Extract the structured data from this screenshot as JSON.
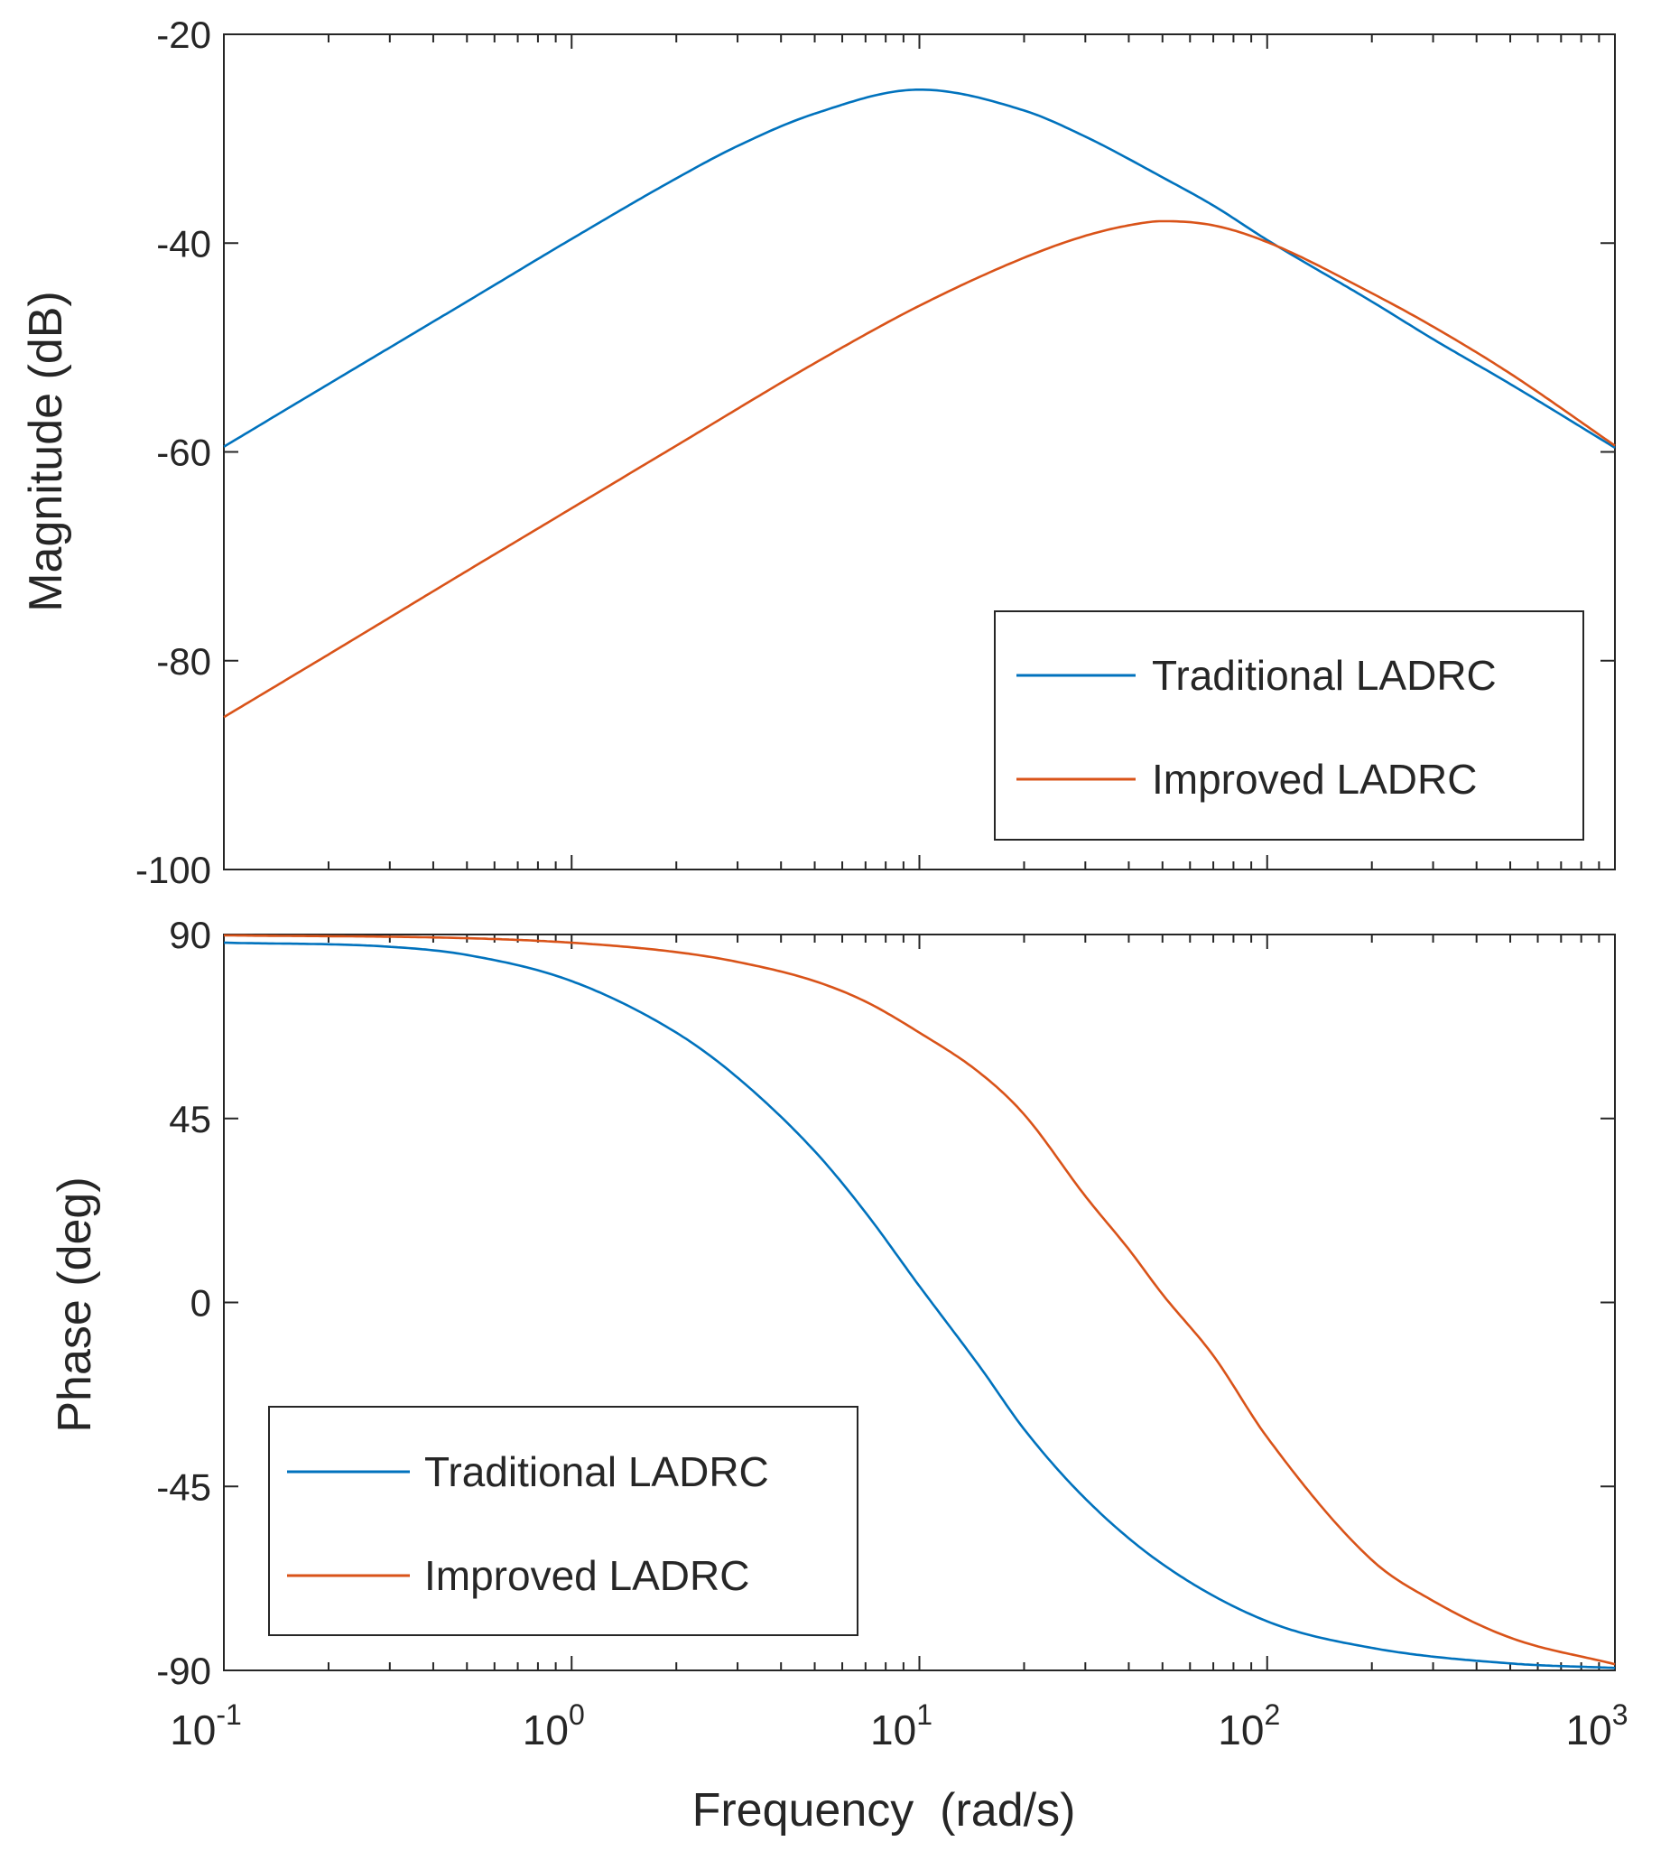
{
  "chart_data": [
    {
      "type": "line",
      "panel": "magnitude",
      "xscale": "log",
      "xlim": [
        0.1,
        1000
      ],
      "ylim": [
        -100,
        -20
      ],
      "yticks": [
        -20,
        -40,
        -60,
        -80,
        -100
      ],
      "xlabel": "",
      "ylabel": "Magnitude (dB)",
      "legend": {
        "placement": "lower-right"
      },
      "series": [
        {
          "name": "Traditional LADRC",
          "color": "#0072BD",
          "x": [
            0.1,
            0.2,
            0.5,
            1,
            2,
            3,
            5,
            10,
            20,
            30,
            50,
            70,
            100,
            200,
            300,
            500,
            1000
          ],
          "y": [
            -59.5,
            -53.5,
            -45.6,
            -39.6,
            -33.8,
            -30.7,
            -27.6,
            -25.3,
            -27.3,
            -29.8,
            -33.7,
            -36.4,
            -39.7,
            -45.6,
            -49.2,
            -53.5,
            -59.6
          ]
        },
        {
          "name": "Improved LADRC",
          "color": "#D95319",
          "x": [
            0.1,
            0.2,
            0.5,
            1,
            2,
            5,
            10,
            20,
            30,
            40,
            50,
            70,
            100,
            200,
            300,
            500,
            1000
          ],
          "y": [
            -85.4,
            -79.4,
            -71.4,
            -65.4,
            -59.4,
            -51.5,
            -46.0,
            -41.4,
            -39.3,
            -38.3,
            -37.9,
            -38.3,
            -39.9,
            -44.8,
            -48.0,
            -52.5,
            -59.4
          ]
        }
      ]
    },
    {
      "type": "line",
      "panel": "phase",
      "xscale": "log",
      "xlim": [
        0.1,
        1000
      ],
      "ylim": [
        -90,
        90
      ],
      "yticks": [
        90,
        45,
        0,
        -45,
        -90
      ],
      "xticks": [
        "10^-1",
        "10^0",
        "10^1",
        "10^2",
        "10^3"
      ],
      "xlabel": "Frequency  (rad/s)",
      "ylabel": "Phase (deg)",
      "legend": {
        "placement": "lower-left"
      },
      "series": [
        {
          "name": "Traditional LADRC",
          "color": "#0072BD",
          "x": [
            0.1,
            0.3,
            0.5,
            1,
            2,
            3,
            5,
            7,
            10,
            15,
            20,
            30,
            50,
            100,
            200,
            500,
            1000
          ],
          "y": [
            88,
            87,
            85,
            78.6,
            66,
            55,
            37,
            22,
            4,
            -16,
            -31,
            -48,
            -64,
            -78,
            -84.5,
            -88.3,
            -89.4
          ]
        },
        {
          "name": "Improved LADRC",
          "color": "#D95319",
          "x": [
            0.1,
            0.5,
            1,
            2,
            3,
            5,
            7,
            10,
            15,
            20,
            30,
            40,
            50,
            70,
            100,
            200,
            300,
            500,
            1000
          ],
          "y": [
            89.8,
            89.1,
            88,
            85.7,
            83.3,
            78.6,
            73.6,
            66,
            56,
            46,
            26,
            13,
            2,
            -13,
            -33,
            -63,
            -73,
            -82,
            -88.5
          ]
        }
      ]
    }
  ],
  "legend_top": {
    "traditional": "Traditional LADRC",
    "improved": "Improved LADRC"
  },
  "legend_bottom": {
    "traditional": "Traditional LADRC",
    "improved": "Improved LADRC"
  },
  "x_tick_labels": [
    {
      "base": "10",
      "exp": "-1"
    },
    {
      "base": "10",
      "exp": "0"
    },
    {
      "base": "10",
      "exp": "1"
    },
    {
      "base": "10",
      "exp": "2"
    },
    {
      "base": "10",
      "exp": "3"
    }
  ],
  "mag_tick_labels": [
    "-20",
    "-40",
    "-60",
    "-80",
    "-100"
  ],
  "phase_tick_labels": [
    "90",
    "45",
    "0",
    "-45",
    "-90"
  ]
}
